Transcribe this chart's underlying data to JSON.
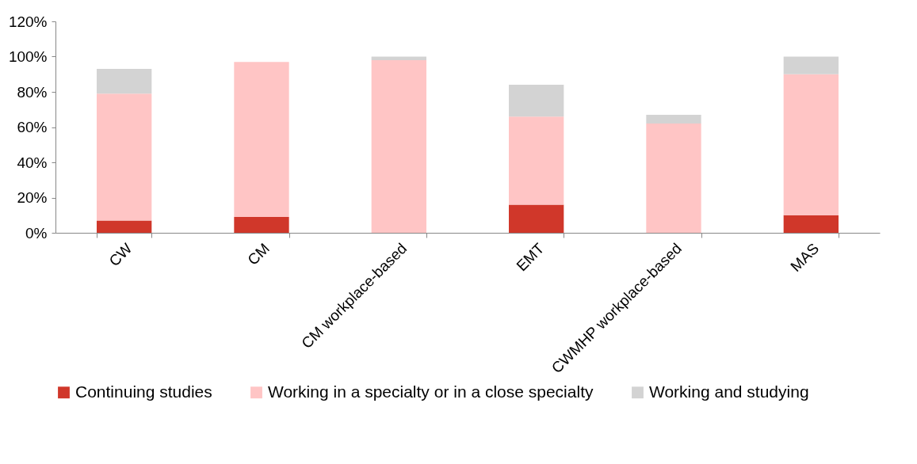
{
  "chart_data": {
    "type": "bar",
    "stacked": true,
    "categories": [
      "CW",
      "CM",
      "CM workplace-based",
      "EMT",
      "CWMHP workplace-based",
      "MAS"
    ],
    "series": [
      {
        "name": "Continuing studies",
        "color": "#d0372a",
        "values": [
          7,
          9,
          0,
          16,
          0,
          10
        ]
      },
      {
        "name": "Working in a specialty or in a close specialty",
        "color": "#ffc5c5",
        "values": [
          72,
          88,
          98,
          50,
          62,
          80
        ]
      },
      {
        "name": "Working and studying",
        "color": "#d3d3d3",
        "values": [
          14,
          0,
          2,
          18,
          5,
          10
        ]
      }
    ],
    "ylim": [
      0,
      120
    ],
    "yticks": [
      {
        "value": 0,
        "label": "0%"
      },
      {
        "value": 20,
        "label": "20%"
      },
      {
        "value": 40,
        "label": "40%"
      },
      {
        "value": 60,
        "label": "60%"
      },
      {
        "value": 80,
        "label": "80%"
      },
      {
        "value": 100,
        "label": "100%"
      },
      {
        "value": 120,
        "label": "120%"
      }
    ],
    "grid": false,
    "legend": "bottom"
  }
}
